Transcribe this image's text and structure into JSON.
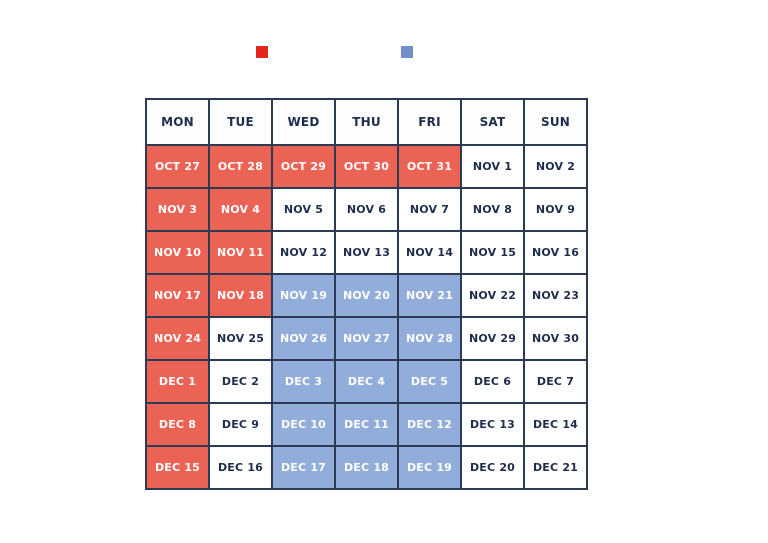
{
  "legend": [
    {
      "label": "",
      "color": "#e3261d"
    },
    {
      "label": "",
      "color": "#6f8fcb"
    }
  ],
  "colors": {
    "red_cell": "#ea6355",
    "blue_cell": "#92add9",
    "border": "#2b3a55",
    "text_dark": "#1f2d4d"
  },
  "calendar": {
    "headers": [
      "MON",
      "TUE",
      "WED",
      "THU",
      "FRI",
      "SAT",
      "SUN"
    ],
    "rows": [
      [
        {
          "t": "OCT 27",
          "c": "red"
        },
        {
          "t": "OCT 28",
          "c": "red"
        },
        {
          "t": "OCT 29",
          "c": "red"
        },
        {
          "t": "OCT 30",
          "c": "red"
        },
        {
          "t": "OCT 31",
          "c": "red"
        },
        {
          "t": "NOV 1",
          "c": ""
        },
        {
          "t": "NOV 2",
          "c": ""
        }
      ],
      [
        {
          "t": "NOV 3",
          "c": "red"
        },
        {
          "t": "NOV 4",
          "c": "red"
        },
        {
          "t": "NOV 5",
          "c": ""
        },
        {
          "t": "NOV 6",
          "c": ""
        },
        {
          "t": "NOV 7",
          "c": ""
        },
        {
          "t": "NOV 8",
          "c": ""
        },
        {
          "t": "NOV 9",
          "c": ""
        }
      ],
      [
        {
          "t": "NOV 10",
          "c": "red"
        },
        {
          "t": "NOV 11",
          "c": "red"
        },
        {
          "t": "NOV 12",
          "c": ""
        },
        {
          "t": "NOV 13",
          "c": ""
        },
        {
          "t": "NOV 14",
          "c": ""
        },
        {
          "t": "NOV 15",
          "c": ""
        },
        {
          "t": "NOV 16",
          "c": ""
        }
      ],
      [
        {
          "t": "NOV 17",
          "c": "red"
        },
        {
          "t": "NOV 18",
          "c": "red"
        },
        {
          "t": "NOV 19",
          "c": "blue"
        },
        {
          "t": "NOV 20",
          "c": "blue"
        },
        {
          "t": "NOV 21",
          "c": "blue"
        },
        {
          "t": "NOV 22",
          "c": ""
        },
        {
          "t": "NOV 23",
          "c": ""
        }
      ],
      [
        {
          "t": "NOV 24",
          "c": "red"
        },
        {
          "t": "NOV 25",
          "c": ""
        },
        {
          "t": "NOV 26",
          "c": "blue"
        },
        {
          "t": "NOV 27",
          "c": "blue"
        },
        {
          "t": "NOV 28",
          "c": "blue"
        },
        {
          "t": "NOV 29",
          "c": ""
        },
        {
          "t": "NOV 30",
          "c": ""
        }
      ],
      [
        {
          "t": "DEC 1",
          "c": "red"
        },
        {
          "t": "DEC 2",
          "c": ""
        },
        {
          "t": "DEC 3",
          "c": "blue"
        },
        {
          "t": "DEC 4",
          "c": "blue"
        },
        {
          "t": "DEC 5",
          "c": "blue"
        },
        {
          "t": "DEC 6",
          "c": ""
        },
        {
          "t": "DEC 7",
          "c": ""
        }
      ],
      [
        {
          "t": "DEC 8",
          "c": "red"
        },
        {
          "t": "DEC 9",
          "c": ""
        },
        {
          "t": "DEC 10",
          "c": "blue"
        },
        {
          "t": "DEC 11",
          "c": "blue"
        },
        {
          "t": "DEC 12",
          "c": "blue"
        },
        {
          "t": "DEC 13",
          "c": ""
        },
        {
          "t": "DEC 14",
          "c": ""
        }
      ],
      [
        {
          "t": "DEC 15",
          "c": "red"
        },
        {
          "t": "DEC 16",
          "c": ""
        },
        {
          "t": "DEC 17",
          "c": "blue"
        },
        {
          "t": "DEC 18",
          "c": "blue"
        },
        {
          "t": "DEC 19",
          "c": "blue"
        },
        {
          "t": "DEC 20",
          "c": ""
        },
        {
          "t": "DEC 21",
          "c": ""
        }
      ]
    ]
  }
}
